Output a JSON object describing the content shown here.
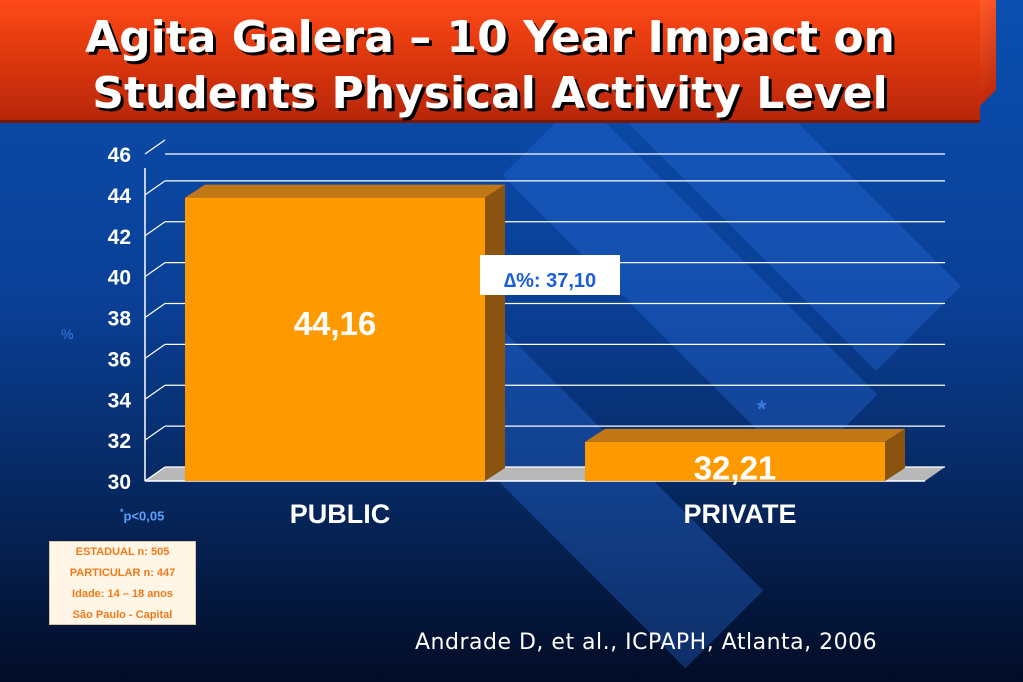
{
  "slide": {
    "title_line1": "Agita Galera – 10 Year Impact on",
    "title_line2": "Students Physical Activity Level",
    "delta_text": "∆%: 37,10",
    "significance_marker": "*",
    "p_note_star": "*",
    "p_note_text": "p<0,05",
    "ylabel": "%",
    "info_box": [
      "ESTADUAL n: 505",
      "PARTICULAR n: 447",
      "Idade: 14 – 18 anos",
      "São Paulo - Capital"
    ],
    "citation": "Andrade D, et al., ICPAPH, Atlanta, 2006"
  },
  "colors": {
    "bar_front": "#ff9900",
    "bar_top": "#c27716",
    "bar_side": "#8a5410",
    "floor": "#b8b8b8",
    "title_banner": "#e23a0e"
  },
  "chart_data": {
    "type": "bar",
    "title": "",
    "xlabel": "",
    "ylabel": "%",
    "categories": [
      "PUBLIC",
      "PRIVATE"
    ],
    "values": [
      44.16,
      32.21
    ],
    "data_labels": [
      "44,16",
      "32,21"
    ],
    "ylim": [
      30,
      46
    ],
    "yticks": [
      30,
      32,
      34,
      36,
      38,
      40,
      42,
      44,
      46
    ],
    "grid": true,
    "legend": "none",
    "annotations": [
      "∆%: 37,10",
      "*"
    ]
  }
}
